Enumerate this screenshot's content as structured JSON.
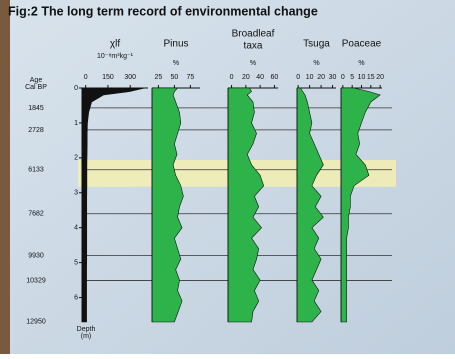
{
  "title": "Fig:2 The long term record of environmental change",
  "age_axis": {
    "label": [
      "Age",
      "Cal BP"
    ],
    "ages": [
      1845,
      2728,
      6133,
      7682,
      9930,
      10329,
      12950
    ],
    "depths": [
      0.57,
      1.2,
      2.34,
      3.6,
      4.8,
      5.51,
      6.69
    ]
  },
  "depth_axis": {
    "label": [
      "Depth",
      "(m)"
    ],
    "ylim": [
      0,
      6.7
    ],
    "yticks": [
      0,
      1,
      2,
      3,
      4,
      5,
      6
    ]
  },
  "highlight": {
    "depths": [
      2.06,
      2.83
    ],
    "color": "#f3eeb0"
  },
  "chart_data": [
    {
      "type": "area",
      "title": [
        "χlf"
      ],
      "unit": "10⁻⁸m³kg⁻¹",
      "color": "#111111",
      "xlim": [
        -25,
        420
      ],
      "xticks": [
        0,
        150,
        300
      ],
      "depth": [
        0,
        0.1,
        0.2,
        0.4,
        0.7,
        1,
        1.3,
        1.6,
        1.9,
        2.2,
        2.5,
        2.8,
        3.1,
        3.4,
        3.7,
        4,
        4.3,
        4.6,
        4.9,
        5.2,
        5.5,
        5.8,
        6.1,
        6.4,
        6.7
      ],
      "values": [
        400,
        300,
        120,
        40,
        20,
        12,
        10,
        10,
        9,
        8,
        8,
        8,
        7,
        7,
        7,
        7,
        7,
        7,
        7,
        6,
        6,
        6,
        6,
        6,
        6
      ]
    },
    {
      "type": "area",
      "title": [
        "Pinus"
      ],
      "unit": "%",
      "color": "#2db34a",
      "xlim": [
        15,
        90
      ],
      "xticks": [
        25,
        50,
        75
      ],
      "depth": [
        0,
        0.1,
        0.2,
        0.4,
        0.7,
        1,
        1.3,
        1.6,
        1.9,
        2.2,
        2.5,
        2.8,
        3.1,
        3.4,
        3.7,
        4,
        4.3,
        4.6,
        4.9,
        5.2,
        5.5,
        5.8,
        6.1,
        6.4,
        6.7
      ],
      "values": [
        55,
        50,
        48,
        52,
        58,
        60,
        55,
        50,
        54,
        48,
        52,
        60,
        64,
        58,
        55,
        62,
        50,
        55,
        60,
        52,
        58,
        55,
        62,
        56,
        50
      ]
    },
    {
      "type": "area",
      "title": [
        "Broadleaf",
        "taxa"
      ],
      "unit": "%",
      "color": "#2db34a",
      "xlim": [
        -5,
        65
      ],
      "xticks": [
        0,
        20,
        40,
        60
      ],
      "depth": [
        0,
        0.1,
        0.2,
        0.4,
        0.7,
        1,
        1.3,
        1.6,
        1.9,
        2.2,
        2.5,
        2.8,
        3.1,
        3.4,
        3.7,
        4,
        4.3,
        4.6,
        4.9,
        5.2,
        5.5,
        5.8,
        6.1,
        6.4,
        6.7
      ],
      "values": [
        25,
        28,
        22,
        30,
        32,
        28,
        35,
        30,
        22,
        28,
        40,
        45,
        32,
        38,
        30,
        42,
        28,
        38,
        35,
        30,
        40,
        32,
        38,
        30,
        28
      ]
    },
    {
      "type": "area",
      "title": [
        "Tsuga"
      ],
      "unit": "%",
      "color": "#2db34a",
      "xlim": [
        -1,
        33
      ],
      "xticks": [
        0,
        10,
        20,
        30
      ],
      "depth": [
        0,
        0.1,
        0.2,
        0.4,
        0.7,
        1,
        1.3,
        1.6,
        1.9,
        2.2,
        2.5,
        2.8,
        3.1,
        3.4,
        3.7,
        4,
        4.3,
        4.6,
        4.9,
        5.2,
        5.5,
        5.8,
        6.1,
        6.4,
        6.7
      ],
      "values": [
        2,
        4,
        6,
        8,
        10,
        12,
        10,
        14,
        18,
        22,
        16,
        12,
        20,
        15,
        22,
        12,
        18,
        14,
        20,
        16,
        12,
        18,
        14,
        20,
        12
      ]
    },
    {
      "type": "area",
      "title": [
        "Poaceae"
      ],
      "unit": "%",
      "color": "#2db34a",
      "xlim": [
        -1,
        21
      ],
      "xticks": [
        0,
        5,
        10,
        15,
        20
      ],
      "depth": [
        0,
        0.1,
        0.2,
        0.4,
        0.7,
        1,
        1.3,
        1.6,
        1.9,
        2.2,
        2.5,
        2.8,
        3.1,
        3.4,
        3.7,
        4,
        4.3,
        4.6,
        4.9,
        5.2,
        5.5,
        5.8,
        6.1,
        6.4,
        6.7
      ],
      "values": [
        6,
        14,
        20,
        15,
        12,
        10,
        8,
        9,
        7,
        12,
        14,
        6,
        4,
        4,
        3,
        3,
        2,
        2,
        2,
        2,
        2,
        2,
        2,
        2,
        2
      ]
    }
  ]
}
